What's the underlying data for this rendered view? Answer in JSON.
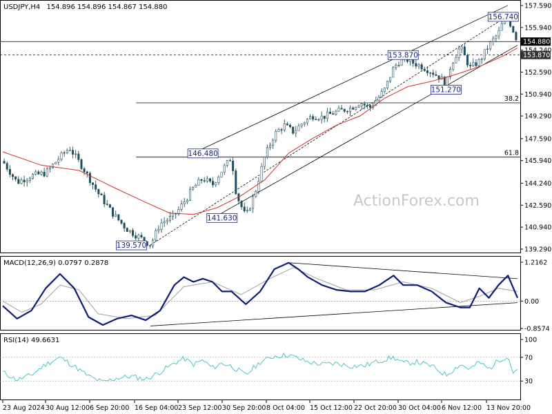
{
  "header": {
    "symbol": "USDJPY,H4",
    "ohlc": "154.896 154.896 154.867 154.880"
  },
  "watermark": "ActionForex.com",
  "colors": {
    "candle": "#1f4e5f",
    "ma": "#d32f2f",
    "channel": "#000000",
    "label_box": "#1a237e",
    "macd": "#0d1b7a",
    "signal": "#9e9e9e",
    "rsi": "#4fc3c7"
  },
  "chart_data": [
    {
      "type": "candlestick",
      "title": "USDJPY,H4",
      "y_axis": {
        "range": [
          139.29,
          157.59
        ],
        "ticks": [
          "157.590",
          "155.940",
          "154.240",
          "152.590",
          "150.940",
          "149.290",
          "147.590",
          "145.940",
          "144.240",
          "142.590",
          "140.940",
          "139.290"
        ]
      },
      "x_axis": {
        "ticks": [
          "23 Aug 2024",
          "30 Aug 12:00",
          "6 Sep 20:00",
          "16 Sep 04:00",
          "23 Sep 12:00",
          "30 Sep 20:00",
          "8 Oct 04:00",
          "15 Oct 12:00",
          "22 Oct 20:00",
          "30 Oct 04:00",
          "6 Nov 12:00",
          "13 Nov 20:00"
        ]
      },
      "price_path": [
        [
          0,
          145.9
        ],
        [
          3,
          144.3
        ],
        [
          6,
          144.8
        ],
        [
          9,
          145.0
        ],
        [
          12,
          146.2
        ],
        [
          14,
          146.9
        ],
        [
          17,
          145.3
        ],
        [
          20,
          143.5
        ],
        [
          23,
          142.0
        ],
        [
          26,
          140.8
        ],
        [
          29,
          140.1
        ],
        [
          31,
          139.6
        ],
        [
          33,
          141.2
        ],
        [
          36,
          141.8
        ],
        [
          38,
          142.8
        ],
        [
          40,
          143.9
        ],
        [
          42,
          144.6
        ],
        [
          44,
          144.1
        ],
        [
          46,
          145.2
        ],
        [
          48,
          146.2
        ],
        [
          49,
          143.4
        ],
        [
          51,
          141.7
        ],
        [
          53,
          143.6
        ],
        [
          55,
          146.3
        ],
        [
          57,
          147.9
        ],
        [
          59,
          148.6
        ],
        [
          61,
          148.1
        ],
        [
          63,
          148.8
        ],
        [
          65,
          149.3
        ],
        [
          67,
          149.2
        ],
        [
          70,
          149.6
        ],
        [
          73,
          149.9
        ],
        [
          75,
          150.3
        ],
        [
          77,
          149.9
        ],
        [
          80,
          151.2
        ],
        [
          82,
          152.9
        ],
        [
          84,
          153.7
        ],
        [
          86,
          153.3
        ],
        [
          88,
          153.0
        ],
        [
          90,
          152.6
        ],
        [
          92,
          152.1
        ],
        [
          93,
          151.5
        ],
        [
          94,
          153.1
        ],
        [
          96,
          154.5
        ],
        [
          98,
          152.9
        ],
        [
          100,
          153.4
        ],
        [
          102,
          154.6
        ],
        [
          104,
          155.5
        ],
        [
          105,
          156.4
        ],
        [
          106,
          156.6
        ],
        [
          107,
          155.8
        ],
        [
          108,
          154.9
        ]
      ],
      "moving_average_path": [
        [
          0,
          146.6
        ],
        [
          8,
          145.6
        ],
        [
          16,
          145.2
        ],
        [
          24,
          143.8
        ],
        [
          30,
          142.8
        ],
        [
          35,
          142.0
        ],
        [
          40,
          141.9
        ],
        [
          45,
          142.4
        ],
        [
          50,
          143.3
        ],
        [
          55,
          144.5
        ],
        [
          60,
          146.5
        ],
        [
          65,
          147.6
        ],
        [
          70,
          148.6
        ],
        [
          75,
          149.3
        ],
        [
          80,
          150.6
        ],
        [
          85,
          151.5
        ],
        [
          90,
          151.9
        ],
        [
          95,
          152.4
        ],
        [
          100,
          153.0
        ],
        [
          105,
          153.8
        ],
        [
          108,
          154.4
        ]
      ],
      "channel_lines": [
        {
          "from": [
            40,
            146.5
          ],
          "to": [
            106,
            157.6
          ]
        },
        {
          "from": [
            44,
            141.6
          ],
          "to": [
            108,
            154.6
          ]
        },
        {
          "from": [
            31,
            139.6
          ],
          "to": [
            105,
            156.6
          ],
          "style": "dashed"
        }
      ],
      "horizontal_levels": [
        {
          "value": 153.87,
          "style": "dashed",
          "label": ""
        },
        {
          "value": 154.88,
          "style": "solid",
          "label": ""
        },
        {
          "value": 150.28,
          "style": "solid",
          "label": "38.2",
          "start": 28
        },
        {
          "value": 146.2,
          "style": "solid",
          "label": "61.8",
          "start": 28
        }
      ],
      "price_labels": [
        {
          "text": "156.740",
          "x": 105,
          "y": 156.74
        },
        {
          "text": "153.870",
          "x": 84,
          "y": 153.87
        },
        {
          "text": "151.270",
          "x": 93,
          "y": 151.27
        },
        {
          "text": "146.480",
          "x": 42,
          "y": 146.48
        },
        {
          "text": "141.630",
          "x": 46,
          "y": 141.63
        },
        {
          "text": "139.570",
          "x": 27,
          "y": 139.57
        }
      ],
      "current_price_tags": [
        "154.880",
        "153.870"
      ]
    },
    {
      "type": "line",
      "title": "MACD(12,26,9) 0.0797 0.2878",
      "y_axis": {
        "range": [
          -0.8574,
          1.2162
        ],
        "ticks": [
          "1.2162",
          "0.00",
          "-0.8574"
        ]
      },
      "series": [
        {
          "name": "MACD",
          "values": [
            [
              0,
              -0.15
            ],
            [
              3,
              -0.55
            ],
            [
              6,
              -0.3
            ],
            [
              9,
              0.4
            ],
            [
              12,
              0.85
            ],
            [
              15,
              0.4
            ],
            [
              18,
              -0.5
            ],
            [
              21,
              -0.75
            ],
            [
              24,
              -0.55
            ],
            [
              27,
              -0.45
            ],
            [
              30,
              -0.6
            ],
            [
              33,
              -0.3
            ],
            [
              36,
              0.5
            ],
            [
              38,
              0.75
            ],
            [
              40,
              0.6
            ],
            [
              42,
              0.7
            ],
            [
              44,
              0.6
            ],
            [
              46,
              0.3
            ],
            [
              48,
              0.3
            ],
            [
              51,
              -0.1
            ],
            [
              54,
              0.3
            ],
            [
              57,
              1.0
            ],
            [
              60,
              1.2
            ],
            [
              62,
              1.0
            ],
            [
              64,
              0.75
            ],
            [
              67,
              0.5
            ],
            [
              70,
              0.35
            ],
            [
              73,
              0.3
            ],
            [
              76,
              0.3
            ],
            [
              79,
              0.5
            ],
            [
              82,
              0.8
            ],
            [
              84,
              0.5
            ],
            [
              87,
              0.5
            ],
            [
              90,
              0.3
            ],
            [
              93,
              -0.05
            ],
            [
              96,
              -0.2
            ],
            [
              98,
              -0.2
            ],
            [
              100,
              0.4
            ],
            [
              102,
              0.1
            ],
            [
              104,
              0.5
            ],
            [
              106,
              0.8
            ],
            [
              108,
              0.1
            ]
          ]
        },
        {
          "name": "Signal",
          "values": [
            [
              0,
              0.0
            ],
            [
              4,
              -0.35
            ],
            [
              8,
              -0.1
            ],
            [
              12,
              0.5
            ],
            [
              16,
              0.35
            ],
            [
              20,
              -0.4
            ],
            [
              26,
              -0.55
            ],
            [
              32,
              -0.45
            ],
            [
              38,
              0.45
            ],
            [
              44,
              0.6
            ],
            [
              50,
              0.2
            ],
            [
              56,
              0.7
            ],
            [
              61,
              1.05
            ],
            [
              66,
              0.7
            ],
            [
              72,
              0.35
            ],
            [
              78,
              0.35
            ],
            [
              84,
              0.6
            ],
            [
              90,
              0.4
            ],
            [
              96,
              -0.05
            ],
            [
              100,
              0.15
            ],
            [
              104,
              0.4
            ],
            [
              108,
              0.3
            ]
          ]
        }
      ],
      "trend_lines": [
        {
          "from": [
            60,
            1.2
          ],
          "to": [
            108,
            0.7
          ]
        },
        {
          "from": [
            31,
            -0.78
          ],
          "to": [
            108,
            -0.05
          ]
        }
      ]
    },
    {
      "type": "line",
      "title": "RSI(14) 49.6631",
      "y_axis": {
        "range": [
          0,
          100
        ],
        "ticks": [
          "100",
          "70",
          "30",
          "0"
        ]
      },
      "series": [
        {
          "name": "RSI",
          "values": [
            [
              0,
              45
            ],
            [
              3,
              32
            ],
            [
              6,
              40
            ],
            [
              9,
              58
            ],
            [
              12,
              70
            ],
            [
              15,
              55
            ],
            [
              18,
              38
            ],
            [
              21,
              28
            ],
            [
              24,
              35
            ],
            [
              27,
              38
            ],
            [
              30,
              33
            ],
            [
              33,
              45
            ],
            [
              36,
              60
            ],
            [
              38,
              68
            ],
            [
              40,
              58
            ],
            [
              42,
              65
            ],
            [
              44,
              52
            ],
            [
              46,
              60
            ],
            [
              48,
              55
            ],
            [
              51,
              40
            ],
            [
              54,
              62
            ],
            [
              57,
              72
            ],
            [
              60,
              74
            ],
            [
              62,
              68
            ],
            [
              64,
              62
            ],
            [
              67,
              58
            ],
            [
              70,
              60
            ],
            [
              73,
              55
            ],
            [
              76,
              56
            ],
            [
              79,
              64
            ],
            [
              82,
              70
            ],
            [
              84,
              60
            ],
            [
              87,
              62
            ],
            [
              90,
              55
            ],
            [
              93,
              40
            ],
            [
              96,
              58
            ],
            [
              98,
              50
            ],
            [
              100,
              62
            ],
            [
              102,
              50
            ],
            [
              104,
              65
            ],
            [
              106,
              72
            ],
            [
              107,
              45
            ],
            [
              108,
              49.66
            ]
          ]
        }
      ],
      "levels": [
        70,
        30
      ]
    }
  ]
}
